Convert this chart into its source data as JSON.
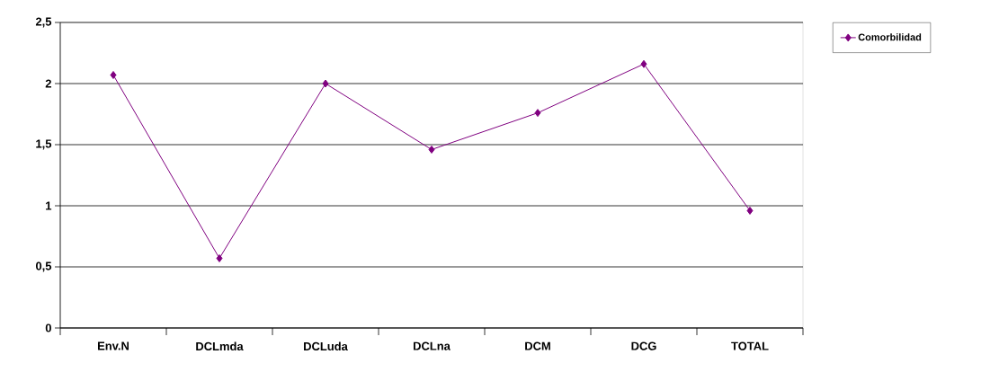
{
  "chart_data": {
    "type": "line",
    "categories": [
      "Env.N",
      "DCLmda",
      "DCLuda",
      "DCLna",
      "DCM",
      "DCG",
      "TOTAL"
    ],
    "series": [
      {
        "name": "Comorbilidad",
        "color": "#800080",
        "values": [
          2.07,
          0.57,
          2.0,
          1.46,
          1.76,
          2.16,
          0.96
        ]
      }
    ],
    "ylim": [
      0,
      2.5
    ],
    "yticks": [
      {
        "value": 0,
        "label": "0"
      },
      {
        "value": 0.5,
        "label": "0,5"
      },
      {
        "value": 1,
        "label": "1"
      },
      {
        "value": 1.5,
        "label": "1,5"
      },
      {
        "value": 2,
        "label": "2"
      },
      {
        "value": 2.5,
        "label": "2,5"
      }
    ],
    "grid": "y",
    "legend": "top right",
    "marker": "diamond",
    "line_style": "solid"
  }
}
